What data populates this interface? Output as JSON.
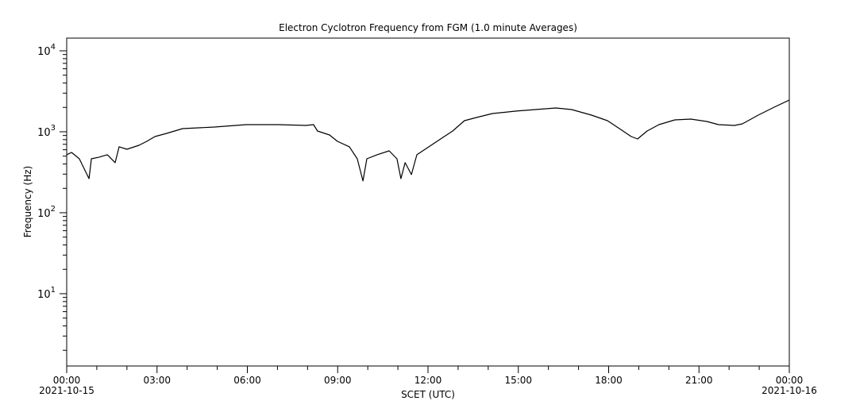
{
  "chart_data": {
    "type": "line",
    "title": "Electron Cyclotron Frequency from FGM (1.0 minute Averages)",
    "xlabel": "SCET (UTC)",
    "ylabel": "Frequency (Hz)",
    "yscale": "log",
    "xlim_hours": [
      0,
      24
    ],
    "ylim": [
      1.28,
      14350
    ],
    "y_ticks": [
      {
        "value": 10,
        "base": "10",
        "exp": "1"
      },
      {
        "value": 100,
        "base": "10",
        "exp": "2"
      },
      {
        "value": 1000,
        "base": "10",
        "exp": "3"
      },
      {
        "value": 10000,
        "base": "10",
        "exp": "4"
      }
    ],
    "x_ticks": [
      {
        "hour": 0,
        "label": "00:00",
        "date": "2021-10-15"
      },
      {
        "hour": 3,
        "label": "03:00"
      },
      {
        "hour": 6,
        "label": "06:00"
      },
      {
        "hour": 9,
        "label": "09:00"
      },
      {
        "hour": 12,
        "label": "12:00"
      },
      {
        "hour": 15,
        "label": "15:00"
      },
      {
        "hour": 18,
        "label": "18:00"
      },
      {
        "hour": 21,
        "label": "21:00"
      },
      {
        "hour": 24,
        "label": "00:00",
        "date": "2021-10-16"
      }
    ],
    "grid": false,
    "series": [
      {
        "name": "Electron Cyclotron Frequency",
        "color": "#000000",
        "x": [
          0,
          0.16,
          0.42,
          0.74,
          0.82,
          1.08,
          1.35,
          1.61,
          1.74,
          2.0,
          2.4,
          2.66,
          2.93,
          3.32,
          3.85,
          4.91,
          5.96,
          7.02,
          7.94,
          8.2,
          8.33,
          8.73,
          8.99,
          9.39,
          9.65,
          9.84,
          9.97,
          10.31,
          10.71,
          10.97,
          11.1,
          11.24,
          11.45,
          11.63,
          12.03,
          12.42,
          12.82,
          13.21,
          13.61,
          14.14,
          14.93,
          16.25,
          16.77,
          17.43,
          17.96,
          18.36,
          18.75,
          18.96,
          19.28,
          19.67,
          20.2,
          20.73,
          21.26,
          21.65,
          22.18,
          22.44,
          22.97,
          23.5,
          24
        ],
        "y": [
          520,
          556,
          464,
          264,
          464,
          486,
          520,
          415,
          652,
          608,
          681,
          763,
          873,
          956,
          1094,
          1145,
          1225,
          1225,
          1198,
          1225,
          1023,
          914,
          763,
          652,
          464,
          247,
          464,
          520,
          582,
          464,
          264,
          415,
          296,
          520,
          652,
          816,
          1023,
          1372,
          1500,
          1680,
          1800,
          1968,
          1882,
          1607,
          1372,
          1094,
          873,
          816,
          1023,
          1225,
          1403,
          1435,
          1340,
          1225,
          1198,
          1253,
          1607,
          2013,
          2466
        ]
      }
    ]
  }
}
